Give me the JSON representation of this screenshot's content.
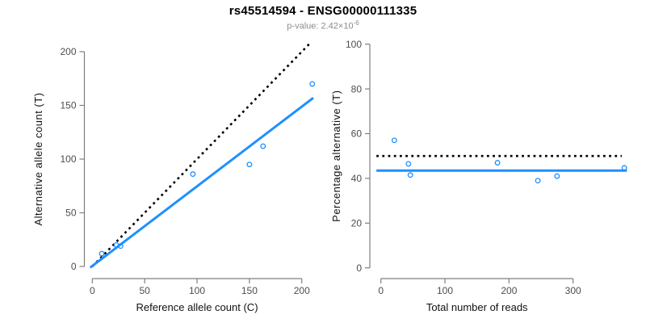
{
  "header": {
    "title": "rs45514594 - ENSG00000111335",
    "subtitle_prefix": "p-value: 2.42×10",
    "subtitle_exponent": "-6"
  },
  "colors": {
    "accent_blue": "#1E90FF",
    "axis": "#7F7F7F",
    "tick_label": "#4D4D4D",
    "axis_title": "#111111",
    "subtitle": "#8C8C8C",
    "reference_line": "#000000"
  },
  "chart_data": [
    {
      "panel": "left",
      "type": "scatter",
      "xlabel": "Reference allele count (C)",
      "ylabel": "Alternative allele count (T)",
      "xticks": [
        0,
        50,
        100,
        150,
        200
      ],
      "yticks": [
        0,
        50,
        100,
        150,
        200
      ],
      "xlim": [
        0,
        218
      ],
      "ylim": [
        0,
        208
      ],
      "grid": false,
      "legend": false,
      "points": [
        [
          9,
          12
        ],
        [
          23,
          20
        ],
        [
          27,
          19
        ],
        [
          96,
          86
        ],
        [
          150,
          95
        ],
        [
          163,
          112
        ],
        [
          210,
          170
        ]
      ],
      "lines": [
        {
          "name": "identity-line",
          "style": "dotted",
          "color": "#000000",
          "from": [
            0,
            0
          ],
          "to": [
            209,
            209
          ]
        },
        {
          "name": "fit-line",
          "style": "solid",
          "color": "#1E90FF",
          "from": [
            -2,
            -1
          ],
          "to": [
            211,
            157
          ]
        }
      ]
    },
    {
      "panel": "right",
      "type": "scatter",
      "xlabel": "Total number of reads",
      "ylabel": "Percentage alternative (T)",
      "xticks": [
        0,
        100,
        200,
        300
      ],
      "yticks": [
        0,
        20,
        40,
        60,
        80,
        100
      ],
      "xlim": [
        0,
        386
      ],
      "ylim": [
        0,
        100
      ],
      "grid": false,
      "legend": false,
      "points": [
        [
          21,
          57
        ],
        [
          43,
          46.5
        ],
        [
          46,
          41.5
        ],
        [
          182,
          47
        ],
        [
          245,
          39
        ],
        [
          275,
          41
        ],
        [
          380,
          44.7
        ]
      ],
      "lines": [
        {
          "name": "fifty-percent-line",
          "style": "dotted",
          "color": "#000000",
          "from": [
            -7,
            50
          ],
          "to": [
            376,
            50
          ]
        },
        {
          "name": "fit-line",
          "style": "solid",
          "color": "#1E90FF",
          "from": [
            -7,
            43.5
          ],
          "to": [
            384,
            43.5
          ]
        }
      ]
    }
  ]
}
